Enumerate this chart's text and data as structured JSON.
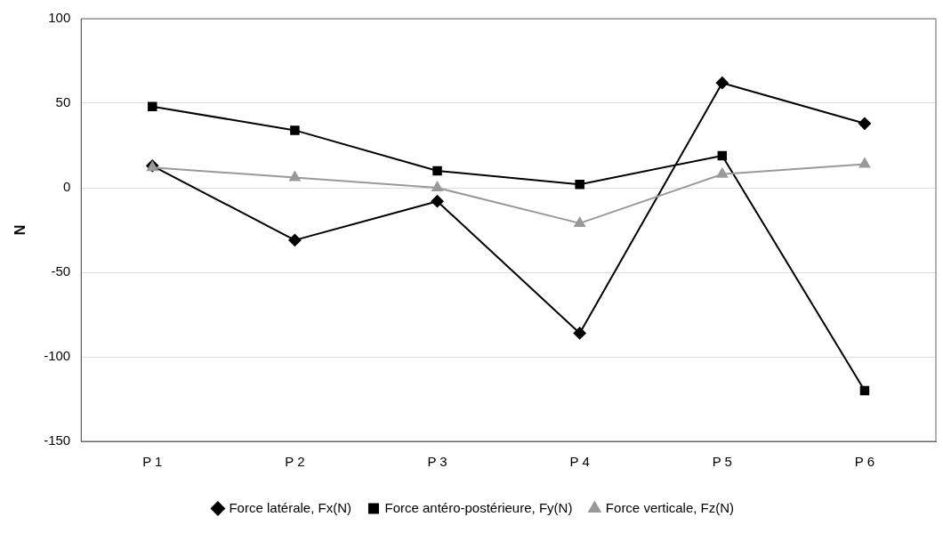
{
  "chart_data": {
    "type": "line",
    "ylabel": "N",
    "categories": [
      "P 1",
      "P 2",
      "P 3",
      "P 4",
      "P 5",
      "P 6"
    ],
    "series": [
      {
        "name": "Force latérale, Fx(N)",
        "color": "#000000",
        "marker": "diamond",
        "values": [
          13,
          -31,
          -8,
          -86,
          62,
          38
        ]
      },
      {
        "name": "Force antéro-postérieure, Fy(N)",
        "color": "#000000",
        "marker": "square",
        "values": [
          48,
          34,
          10,
          2,
          19,
          -120
        ]
      },
      {
        "name": "Force verticale, Fz(N)",
        "color": "#999999",
        "marker": "triangle",
        "values": [
          12,
          6,
          0,
          -21,
          8,
          14
        ]
      }
    ],
    "ylim": [
      -150,
      100
    ],
    "yticks": [
      -150,
      -100,
      -50,
      0,
      50,
      100
    ],
    "grid": "y",
    "legend": "bottom"
  }
}
